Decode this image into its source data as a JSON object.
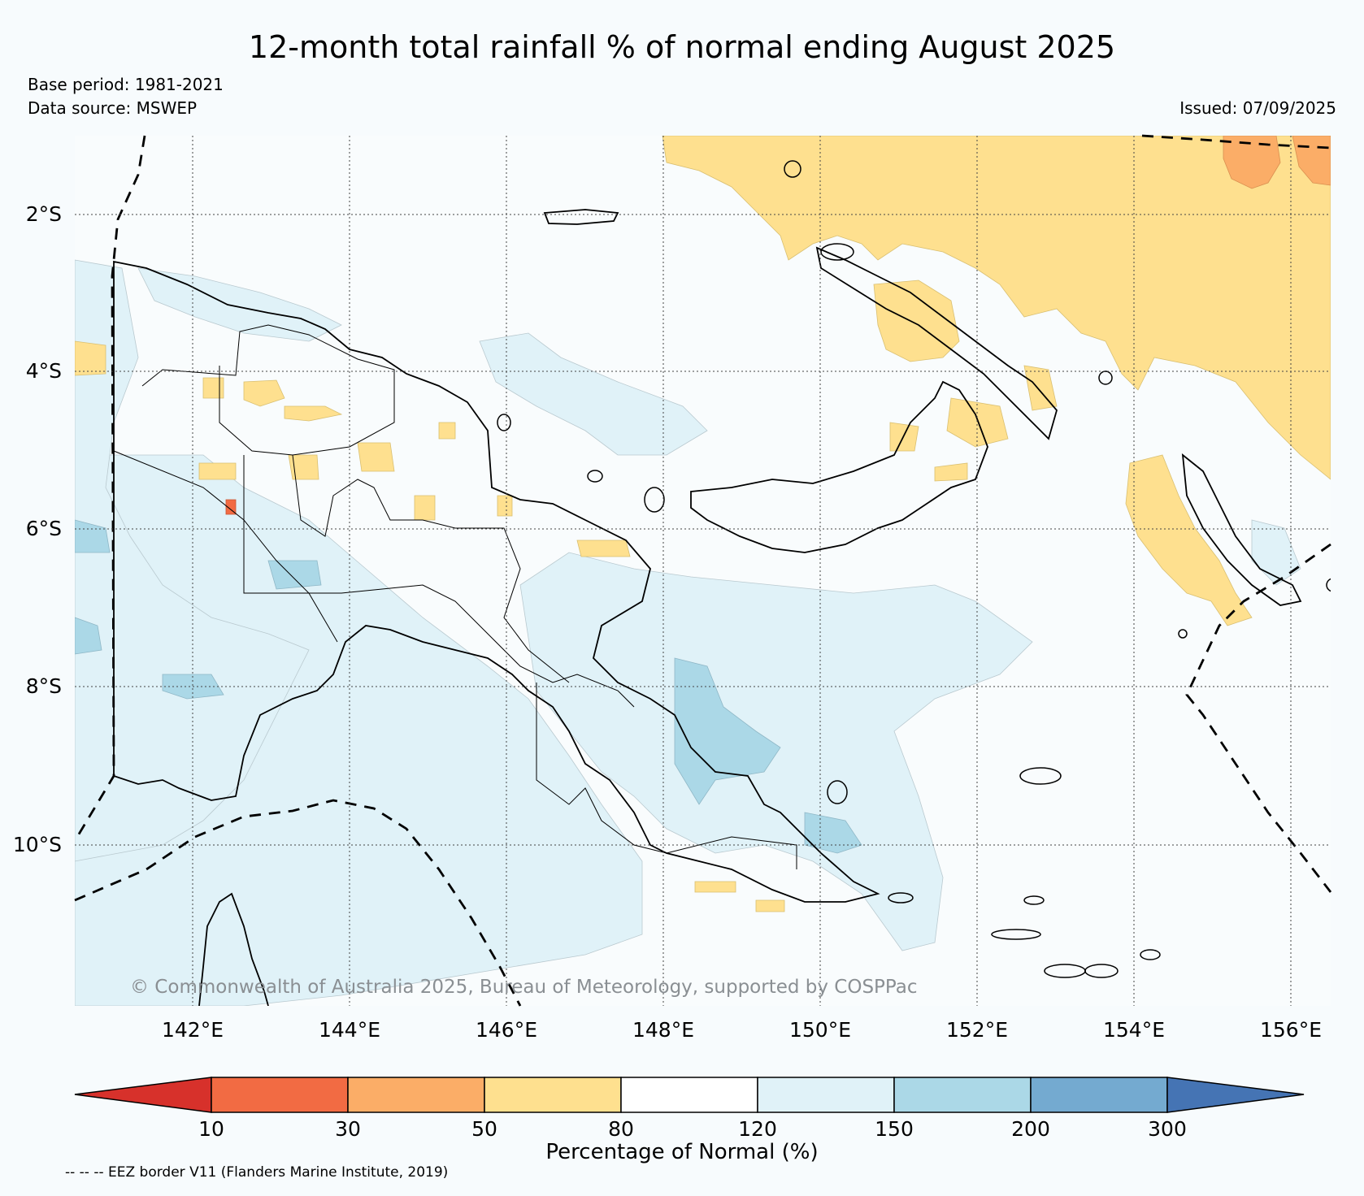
{
  "header": {
    "title": "12-month total rainfall % of normal ending August 2025",
    "base_period": "Base period: 1981-2021",
    "data_source": "Data source: MSWEP",
    "issued": "Issued: 07/09/2025"
  },
  "map": {
    "lat_labels": [
      "2°S",
      "4°S",
      "6°S",
      "8°S",
      "10°S"
    ],
    "lon_labels": [
      "142°E",
      "144°E",
      "146°E",
      "148°E",
      "150°E",
      "152°E",
      "154°E",
      "156°E"
    ],
    "copyright": "© Commonwealth of Australia 2025, Bureau of Meteorology, supported by COSPPac",
    "region": "Papua New Guinea"
  },
  "colorbar": {
    "ticks": [
      "10",
      "30",
      "50",
      "80",
      "120",
      "150",
      "200",
      "300"
    ],
    "label": "Percentage of Normal (%)",
    "colors": {
      "below_10": "#d7312b",
      "10_30": "#f26b43",
      "30_50": "#fbad67",
      "50_80": "#fee08f",
      "80_120": "#ffffff",
      "120_150": "#e0f2f8",
      "150_200": "#abd8e7",
      "200_300": "#74aad0",
      "above_300": "#4574b4"
    }
  },
  "footer": {
    "eez_note": "-- -- -- EEZ border V11 (Flanders Marine Institute, 2019)"
  }
}
